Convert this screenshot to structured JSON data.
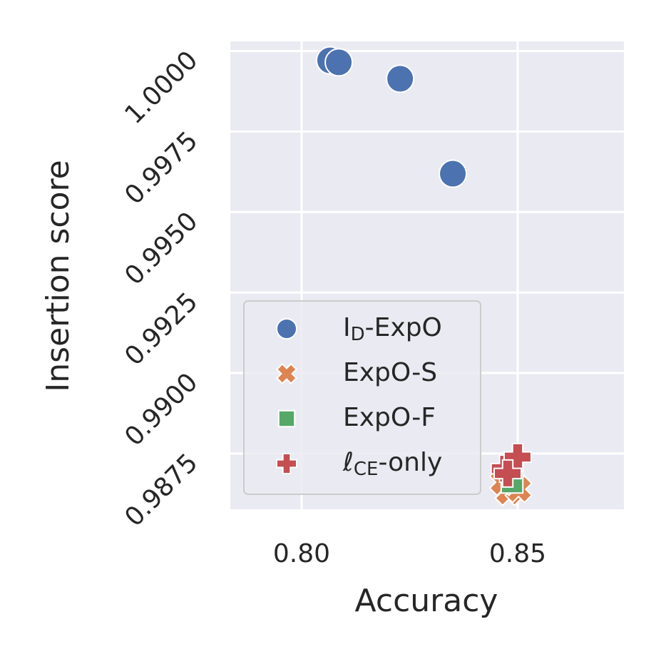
{
  "chart_data": {
    "type": "scatter",
    "x_label": "Accuracy",
    "y_label": "Insertion score",
    "xlim": [
      0.7835,
      0.8746
    ],
    "ylim": [
      0.98577,
      1.0003
    ],
    "xticks": [
      {
        "value": 0.8,
        "label": "0.80"
      },
      {
        "value": 0.85,
        "label": "0.85"
      }
    ],
    "yticks": [
      {
        "value": 0.9875,
        "label": "0.9875"
      },
      {
        "value": 0.99,
        "label": "0.9900"
      },
      0.9925,
      {
        "value": 0.995,
        "label": "0.9950"
      },
      0.9975,
      {
        "value": 1,
        "label": "1.0000"
      }
    ],
    "grid": true,
    "legend": "lower left",
    "series": [
      {
        "name": "ID-ExpO",
        "color": "#4c72b0",
        "marker": "circle",
        "x": [
          0.8066,
          0.8086,
          0.8228,
          0.835
        ],
        "values": [
          0.99971,
          0.99965,
          0.99914,
          0.99619
        ]
      },
      {
        "name": "ExpO-S",
        "color": "#dd8452",
        "marker": "x",
        "x": [
          0.8479,
          0.8502,
          0.8466
        ],
        "values": [
          0.9863,
          0.98639,
          0.98661
        ]
      },
      {
        "name": "ExpO-F",
        "color": "#55a868",
        "marker": "square",
        "x": [
          0.8487
        ],
        "values": [
          0.98661
        ]
      },
      {
        "name": "ℓCE-only",
        "color": "#c44e52",
        "marker": "plus",
        "x": [
          0.847,
          0.85,
          0.8477
        ],
        "values": [
          0.98703,
          0.98739,
          0.98688
        ]
      }
    ]
  }
}
